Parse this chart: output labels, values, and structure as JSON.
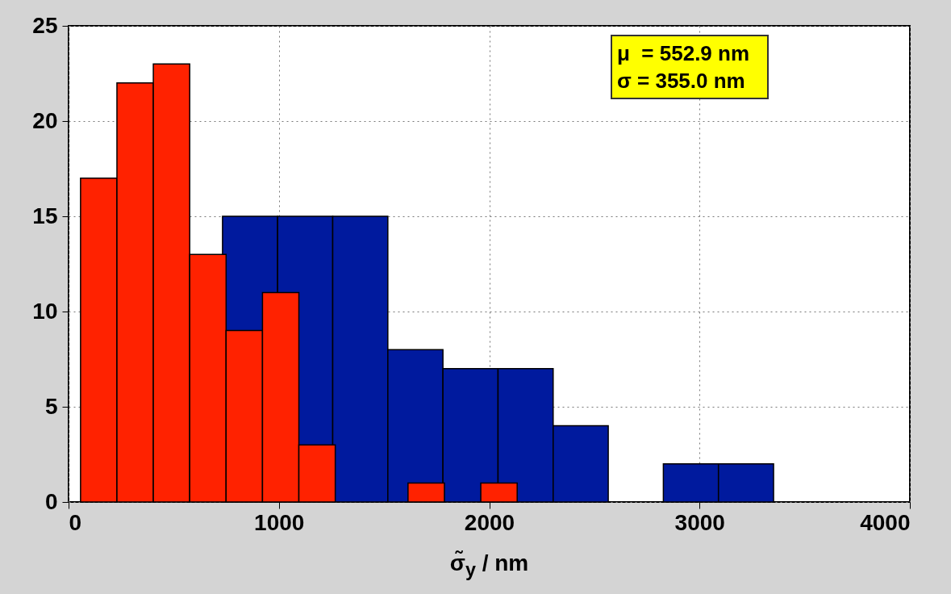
{
  "chart_data": {
    "type": "histogram",
    "xlabel": "σ̃$_{y}$ / nm",
    "bins": [
      732,
      994,
      1256,
      1518,
      1780,
      2042,
      2304,
      2566,
      2828,
      3090,
      3352
    ],
    "series": [
      {
        "color": "#001a9e",
        "values": [
          15,
          15,
          15,
          8,
          7,
          7,
          4,
          0,
          2,
          2
        ]
      },
      {
        "color": "#ff2200",
        "bins": [
          57,
          230,
          403,
          576,
          749,
          922,
          1095,
          1268,
          1441,
          1614,
          1787,
          1960,
          2133
        ],
        "values": [
          17,
          22,
          23,
          13,
          9,
          11,
          3,
          0,
          0,
          1,
          0,
          1
        ]
      }
    ],
    "annotations": [
      "μ  = 552.9 nm",
      "σ = 355.0 nm"
    ],
    "xlim": [
      0,
      4000
    ],
    "xticks": [
      0,
      1000,
      2000,
      3000,
      4000
    ],
    "ylim": [
      0,
      25
    ],
    "yticks": [
      0,
      5,
      10,
      15,
      20,
      25
    ],
    "grid": true
  }
}
